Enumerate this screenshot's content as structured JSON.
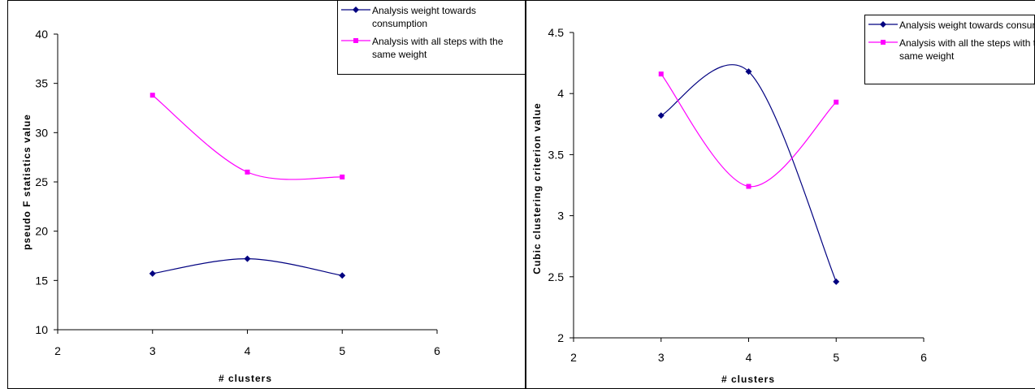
{
  "chart_data": [
    {
      "type": "line",
      "title": "",
      "xlabel": "# clusters",
      "ylabel": "pseudo F statistics value",
      "xlim": [
        2,
        6
      ],
      "ylim": [
        10,
        40
      ],
      "x_ticks": [
        "2",
        "3",
        "4",
        "5",
        "6"
      ],
      "y_ticks": [
        "10",
        "15",
        "20",
        "25",
        "30",
        "35",
        "40"
      ],
      "x_tick_values": [
        2,
        3,
        4,
        5,
        6
      ],
      "y_tick_values": [
        10,
        15,
        20,
        25,
        30,
        35,
        40
      ],
      "grid": false,
      "legend_position": "top-right",
      "series": [
        {
          "name": "Analysis weight towards consumption",
          "x": [
            3,
            4,
            5
          ],
          "values": [
            15.7,
            17.2,
            15.5
          ],
          "color": "#000080",
          "marker": "diamond"
        },
        {
          "name": "Analysis with all steps with the same weight",
          "x": [
            3,
            4,
            5
          ],
          "values": [
            33.8,
            26.0,
            25.5
          ],
          "color": "#ff00ff",
          "marker": "square"
        }
      ]
    },
    {
      "type": "line",
      "title": "",
      "xlabel": "# clusters",
      "ylabel": "Cubic clustering criterion value",
      "xlim": [
        2,
        6
      ],
      "ylim": [
        2,
        4.5
      ],
      "x_ticks": [
        "2",
        "3",
        "4",
        "5",
        "6"
      ],
      "y_ticks": [
        "2",
        "2.5",
        "3",
        "3.5",
        "4",
        "4.5"
      ],
      "x_tick_values": [
        2,
        3,
        4,
        5,
        6
      ],
      "y_tick_values": [
        2,
        2.5,
        3,
        3.5,
        4,
        4.5
      ],
      "grid": false,
      "legend_position": "top-right",
      "series": [
        {
          "name": "Analysis weight towards consumption",
          "x": [
            3,
            4,
            5
          ],
          "values": [
            3.82,
            4.18,
            2.46
          ],
          "color": "#000080",
          "marker": "diamond"
        },
        {
          "name": "Analysis with all the steps with the same weight",
          "x": [
            3,
            4,
            5
          ],
          "values": [
            4.16,
            3.24,
            3.93
          ],
          "color": "#ff00ff",
          "marker": "square"
        }
      ]
    }
  ]
}
